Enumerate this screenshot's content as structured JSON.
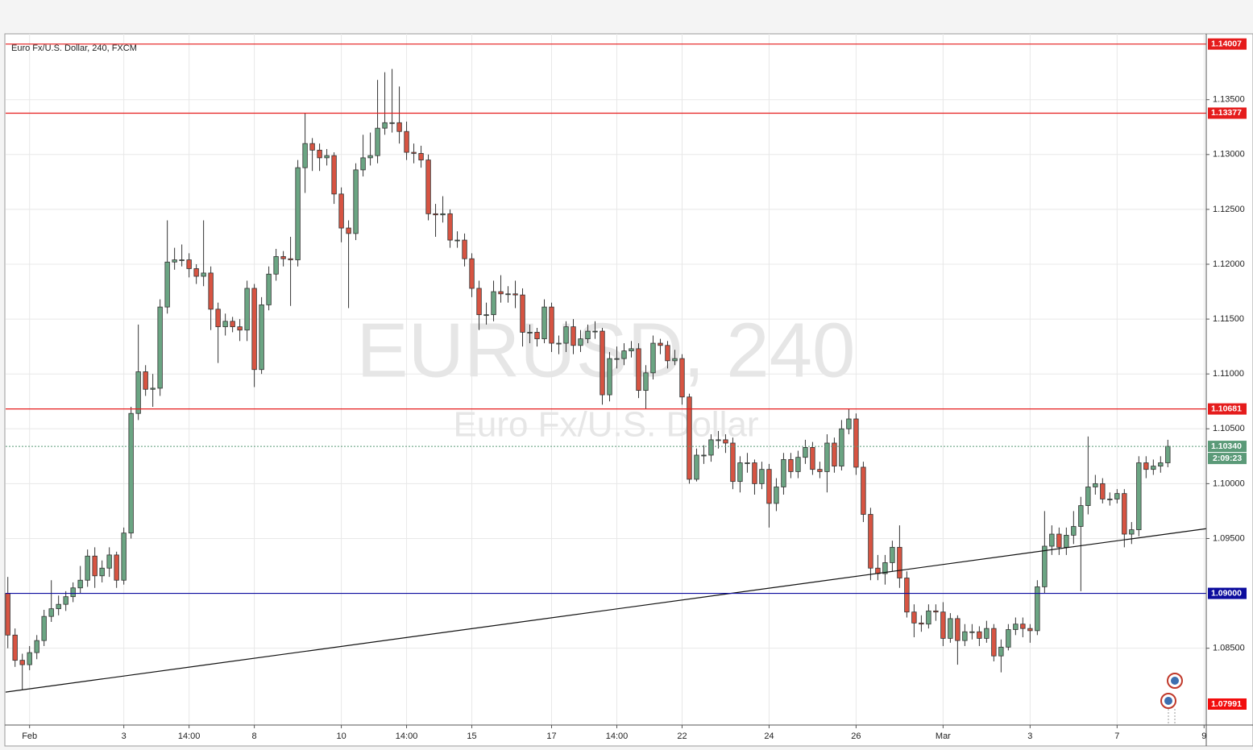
{
  "chart_data": {
    "type": "candlestick",
    "title": "Euro Fx/U.S. Dollar, 240, FXCM",
    "watermark_symbol": "EURUSD, 240",
    "watermark_name": "Euro Fx/U.S. Dollar",
    "up_color": "#6ba583",
    "down_color": "#d75442",
    "grid": true,
    "xlim": [
      -0.3,
      165.3
    ],
    "ylim": [
      1.078,
      1.141
    ],
    "yticks": [
      {
        "value": 1.085,
        "label": "1.08500"
      },
      {
        "value": 1.095,
        "label": "1.09500"
      },
      {
        "value": 1.1,
        "label": "1.10000"
      },
      {
        "value": 1.105,
        "label": "1.10500"
      },
      {
        "value": 1.11,
        "label": "1.11000"
      },
      {
        "value": 1.115,
        "label": "1.11500"
      },
      {
        "value": 1.12,
        "label": "1.12000"
      },
      {
        "value": 1.125,
        "label": "1.12500"
      },
      {
        "value": 1.13,
        "label": "1.13000"
      },
      {
        "value": 1.135,
        "label": "1.13500"
      }
    ],
    "xticks": [
      {
        "value": 3,
        "label": "Feb"
      },
      {
        "value": 16,
        "label": "3"
      },
      {
        "value": 25,
        "label": "14:00"
      },
      {
        "value": 34,
        "label": "8"
      },
      {
        "value": 46,
        "label": "10"
      },
      {
        "value": 55,
        "label": "14:00"
      },
      {
        "value": 64,
        "label": "15"
      },
      {
        "value": 75,
        "label": "17"
      },
      {
        "value": 84,
        "label": "14:00"
      },
      {
        "value": 93,
        "label": "22"
      },
      {
        "value": 105,
        "label": "24"
      },
      {
        "value": 117,
        "label": "26"
      },
      {
        "value": 129,
        "label": "Mar"
      },
      {
        "value": 141,
        "label": "3"
      },
      {
        "value": 153,
        "label": "7"
      },
      {
        "value": 165,
        "label": "9"
      }
    ],
    "hlines": [
      {
        "value": 1.14007,
        "label": "1.14007",
        "color": "#e51c1c"
      },
      {
        "value": 1.13377,
        "label": "1.13377",
        "color": "#e51c1c"
      },
      {
        "value": 1.10681,
        "label": "1.10681",
        "color": "#e51c1c"
      },
      {
        "value": 1.09,
        "label": "1.09000",
        "color": "#0d0d9e"
      }
    ],
    "current": {
      "value": 1.1034,
      "label": "1.10340",
      "countdown": "2:09:23",
      "color": "#5b9a78"
    },
    "low_marker": {
      "value": 1.07991,
      "label": "1.07991",
      "color": "#f20d0d"
    },
    "trendline": {
      "x": [
        -0.3,
        165.3
      ],
      "y": [
        1.081,
        1.0959
      ],
      "color": "#111111"
    },
    "open": [
      1.09,
      1.0862,
      1.0839,
      1.0835,
      1.0846,
      1.0857,
      1.0879,
      1.0886,
      1.089,
      1.0897,
      1.0905,
      1.0912,
      1.0934,
      1.0916,
      1.0923,
      1.0935,
      1.0912,
      1.0955,
      1.1064,
      1.1102,
      1.1086,
      1.1087,
      1.1161,
      1.1202,
      1.1204,
      1.1204,
      1.1196,
      1.1189,
      1.1192,
      1.1159,
      1.1143,
      1.1148,
      1.1143,
      1.114,
      1.1178,
      1.1104,
      1.1163,
      1.1191,
      1.1207,
      1.1205,
      1.1204,
      1.1288,
      1.131,
      1.1304,
      1.1297,
      1.1299,
      1.1264,
      1.1233,
      1.1228,
      1.1286,
      1.1297,
      1.1299,
      1.1324,
      1.1329,
      1.1329,
      1.1321,
      1.1302,
      1.1301,
      1.1295,
      1.1246,
      1.1245,
      1.1246,
      1.1222,
      1.1222,
      1.1205,
      1.1178,
      1.1154,
      1.1154,
      1.1175,
      1.1173,
      1.1173,
      1.1172,
      1.1138,
      1.1138,
      1.1132,
      1.1161,
      1.1128,
      1.1128,
      1.1143,
      1.1126,
      1.1132,
      1.1139,
      1.1139,
      1.1081,
      1.1114,
      1.1114,
      1.1121,
      1.1123,
      1.1085,
      1.1101,
      1.1128,
      1.1126,
      1.1112,
      1.1114,
      1.1079,
      1.1004,
      1.1026,
      1.1026,
      1.104,
      1.104,
      1.1037,
      1.1002,
      1.1019,
      1.1019,
      1.1,
      1.1013,
      1.0982,
      1.0997,
      1.1022,
      1.1011,
      1.1024,
      1.1033,
      1.1013,
      1.1011,
      1.1037,
      1.1016,
      1.105,
      1.1059,
      1.1015,
      1.0972,
      1.0923,
      1.0918,
      1.0928,
      1.0942,
      1.0914,
      1.0883,
      1.0873,
      1.0872,
      1.0884,
      1.0883,
      1.0859,
      1.0877,
      1.0857,
      1.0865,
      1.0865,
      1.0859,
      1.0868,
      1.0843,
      1.0851,
      1.0867,
      1.0872,
      1.0868,
      1.0866,
      1.0906,
      1.0943,
      1.0954,
      1.0942,
      1.0953,
      1.0961,
      1.098,
      1.0997,
      1.1,
      1.0986,
      1.0986,
      1.0991,
      1.0954,
      1.0958,
      1.1019,
      1.1013,
      1.1016,
      1.1019
    ],
    "high": [
      1.0915,
      1.0868,
      1.0845,
      1.0852,
      1.0862,
      1.0885,
      1.0912,
      1.0898,
      1.0902,
      1.091,
      1.0925,
      1.094,
      1.0942,
      1.093,
      1.0942,
      1.0938,
      1.096,
      1.107,
      1.1145,
      1.1108,
      1.11,
      1.1168,
      1.124,
      1.1215,
      1.1218,
      1.121,
      1.12,
      1.124,
      1.1198,
      1.1165,
      1.1155,
      1.1152,
      1.115,
      1.1185,
      1.1182,
      1.117,
      1.1198,
      1.1214,
      1.1212,
      1.1225,
      1.1295,
      1.1338,
      1.1315,
      1.131,
      1.1305,
      1.1302,
      1.127,
      1.124,
      1.1292,
      1.1318,
      1.132,
      1.1368,
      1.1375,
      1.1378,
      1.1362,
      1.133,
      1.131,
      1.1308,
      1.13,
      1.1255,
      1.1262,
      1.125,
      1.123,
      1.1228,
      1.121,
      1.1185,
      1.1165,
      1.1185,
      1.119,
      1.118,
      1.1185,
      1.1178,
      1.1145,
      1.1142,
      1.1168,
      1.1165,
      1.1135,
      1.1148,
      1.115,
      1.114,
      1.1145,
      1.1148,
      1.1142,
      1.112,
      1.1125,
      1.1128,
      1.113,
      1.1128,
      1.1108,
      1.1135,
      1.1132,
      1.113,
      1.1122,
      1.1118,
      1.1082,
      1.1032,
      1.1035,
      1.1045,
      1.1048,
      1.1045,
      1.1042,
      1.1025,
      1.1028,
      1.1022,
      1.102,
      1.1018,
      1.1005,
      1.1028,
      1.1028,
      1.103,
      1.104,
      1.1038,
      1.102,
      1.1045,
      1.1042,
      1.1058,
      1.1068,
      1.1064,
      1.102,
      1.0978,
      1.0935,
      1.0935,
      1.0948,
      1.0962,
      1.092,
      1.089,
      1.088,
      1.089,
      1.089,
      1.0892,
      1.0882,
      1.088,
      1.0872,
      1.0872,
      1.087,
      1.0875,
      1.0872,
      1.0858,
      1.0872,
      1.0878,
      1.0878,
      1.0872,
      1.0912,
      1.0975,
      1.0962,
      1.096,
      1.096,
      1.0975,
      1.0988,
      1.1043,
      1.1008,
      1.1005,
      1.0992,
      1.0995,
      1.0995,
      1.0965,
      1.1025,
      1.1025,
      1.1022,
      1.1025,
      1.104
    ],
    "low": [
      1.085,
      1.0833,
      1.0812,
      1.083,
      1.084,
      1.0852,
      1.0874,
      1.088,
      1.0884,
      1.0892,
      1.09,
      1.0906,
      1.0905,
      1.091,
      1.0915,
      1.0905,
      1.0908,
      1.095,
      1.1058,
      1.108,
      1.107,
      1.108,
      1.1155,
      1.1195,
      1.1198,
      1.1188,
      1.1182,
      1.118,
      1.114,
      1.111,
      1.1135,
      1.1138,
      1.113,
      1.113,
      1.1088,
      1.11,
      1.1158,
      1.1185,
      1.1198,
      1.1162,
      1.1198,
      1.1265,
      1.1285,
      1.1285,
      1.129,
      1.1255,
      1.122,
      1.116,
      1.1222,
      1.128,
      1.129,
      1.1292,
      1.1318,
      1.132,
      1.131,
      1.1295,
      1.1292,
      1.1288,
      1.124,
      1.1225,
      1.1238,
      1.1215,
      1.1215,
      1.1198,
      1.117,
      1.114,
      1.1145,
      1.1148,
      1.1165,
      1.1165,
      1.116,
      1.1125,
      1.1128,
      1.1125,
      1.1128,
      1.112,
      1.1118,
      1.112,
      1.1118,
      1.112,
      1.1128,
      1.1132,
      1.1072,
      1.1075,
      1.1105,
      1.1108,
      1.1115,
      1.1078,
      1.1068,
      1.1095,
      1.1118,
      1.1105,
      1.1108,
      1.1072,
      1.1,
      1.1002,
      1.1018,
      1.102,
      1.1032,
      1.1028,
      1.0995,
      1.0992,
      1.101,
      1.099,
      1.0995,
      1.096,
      1.0975,
      1.099,
      1.1005,
      1.1005,
      1.1018,
      1.1008,
      1.1005,
      1.0992,
      1.101,
      1.1012,
      1.1045,
      1.1008,
      1.0965,
      1.0912,
      1.0912,
      1.0908,
      1.092,
      1.0905,
      1.0878,
      1.086,
      1.0865,
      1.0868,
      1.0875,
      1.0852,
      1.0855,
      1.0835,
      1.0852,
      1.0858,
      1.0852,
      1.0855,
      1.0838,
      1.0828,
      1.0848,
      1.0862,
      1.086,
      1.0855,
      1.0862,
      1.09,
      1.0935,
      1.0935,
      1.0935,
      1.0945,
      1.0902,
      1.0972,
      1.099,
      1.0982,
      1.098,
      1.0982,
      1.0942,
      1.0945,
      1.0952,
      1.1005,
      1.1008,
      1.101,
      1.1015
    ],
    "close": [
      1.0862,
      1.0839,
      1.0835,
      1.0846,
      1.0857,
      1.0879,
      1.0886,
      1.089,
      1.0897,
      1.0905,
      1.0912,
      1.0934,
      1.0916,
      1.0923,
      1.0935,
      1.0912,
      1.0955,
      1.1064,
      1.1102,
      1.1086,
      1.1087,
      1.1161,
      1.1202,
      1.1204,
      1.1204,
      1.1196,
      1.1189,
      1.1192,
      1.1159,
      1.1143,
      1.1148,
      1.1143,
      1.114,
      1.1178,
      1.1104,
      1.1163,
      1.1191,
      1.1207,
      1.1205,
      1.1204,
      1.1288,
      1.131,
      1.1304,
      1.1297,
      1.1299,
      1.1264,
      1.1233,
      1.1228,
      1.1286,
      1.1297,
      1.1299,
      1.1324,
      1.1329,
      1.1329,
      1.1321,
      1.1302,
      1.1301,
      1.1295,
      1.1246,
      1.1245,
      1.1246,
      1.1222,
      1.1222,
      1.1205,
      1.1178,
      1.1154,
      1.1154,
      1.1175,
      1.1173,
      1.1173,
      1.1172,
      1.1138,
      1.1138,
      1.1132,
      1.1161,
      1.1128,
      1.1128,
      1.1143,
      1.1126,
      1.1132,
      1.1139,
      1.1139,
      1.1081,
      1.1114,
      1.1114,
      1.1121,
      1.1123,
      1.1085,
      1.1101,
      1.1128,
      1.1126,
      1.1112,
      1.1114,
      1.1079,
      1.1004,
      1.1026,
      1.1026,
      1.104,
      1.104,
      1.1037,
      1.1002,
      1.1019,
      1.1019,
      1.1,
      1.1013,
      1.0982,
      1.0997,
      1.1022,
      1.1011,
      1.1024,
      1.1033,
      1.1013,
      1.1011,
      1.1037,
      1.1016,
      1.105,
      1.1059,
      1.1015,
      1.0972,
      1.0923,
      1.0918,
      1.0928,
      1.0942,
      1.0914,
      1.0883,
      1.0873,
      1.0872,
      1.0884,
      1.0883,
      1.0859,
      1.0877,
      1.0857,
      1.0865,
      1.0865,
      1.0859,
      1.0868,
      1.0843,
      1.0851,
      1.0867,
      1.0872,
      1.0868,
      1.0866,
      1.0906,
      1.0943,
      1.0954,
      1.0942,
      1.0953,
      1.0961,
      1.098,
      1.0997,
      1.1,
      1.0986,
      1.0986,
      1.0991,
      1.0954,
      1.0958,
      1.1019,
      1.1013,
      1.1016,
      1.1019,
      1.1034
    ]
  }
}
